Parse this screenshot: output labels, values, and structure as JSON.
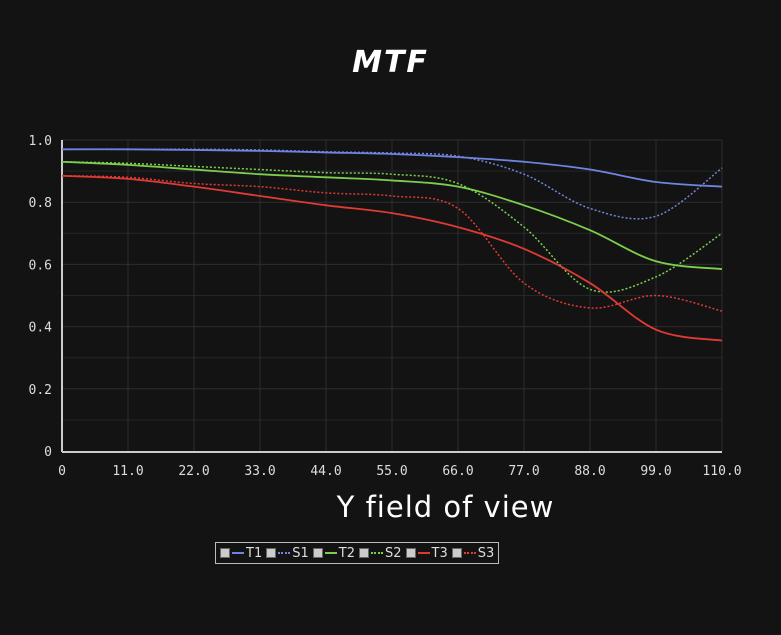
{
  "chart_data": {
    "type": "line",
    "title": "MTF",
    "xlabel": "Y field of view",
    "ylabel": "",
    "xlim": [
      0,
      110
    ],
    "ylim": [
      0,
      1.0
    ],
    "xticks": [
      "0",
      "11.0",
      "22.0",
      "33.0",
      "44.0",
      "55.0",
      "66.0",
      "77.0",
      "88.0",
      "99.0",
      "110.0"
    ],
    "yticks": [
      "0",
      "0.2",
      "0.4",
      "0.6",
      "0.8",
      "1.0"
    ],
    "grid": true,
    "legend": "bottom",
    "x": [
      0,
      11,
      22,
      33,
      44,
      55,
      66,
      77,
      88,
      99,
      110
    ],
    "series": [
      {
        "name": "T1",
        "color": "#6f84e0",
        "style": "solid",
        "values": [
          0.97,
          0.97,
          0.968,
          0.965,
          0.96,
          0.955,
          0.945,
          0.93,
          0.905,
          0.865,
          0.85
        ]
      },
      {
        "name": "S1",
        "color": "#6f84e0",
        "style": "dotted",
        "values": [
          0.97,
          0.97,
          0.97,
          0.968,
          0.962,
          0.958,
          0.948,
          0.89,
          0.78,
          0.755,
          0.91
        ]
      },
      {
        "name": "T2",
        "color": "#7ccf4e",
        "style": "solid",
        "values": [
          0.93,
          0.92,
          0.905,
          0.89,
          0.88,
          0.87,
          0.85,
          0.79,
          0.71,
          0.61,
          0.585
        ]
      },
      {
        "name": "S2",
        "color": "#7ccf4e",
        "style": "dotted",
        "values": [
          0.93,
          0.925,
          0.915,
          0.905,
          0.895,
          0.89,
          0.86,
          0.72,
          0.52,
          0.56,
          0.7
        ]
      },
      {
        "name": "T3",
        "color": "#e03a35",
        "style": "solid",
        "values": [
          0.885,
          0.875,
          0.85,
          0.82,
          0.79,
          0.765,
          0.72,
          0.65,
          0.54,
          0.39,
          0.355
        ]
      },
      {
        "name": "S3",
        "color": "#e03a35",
        "style": "dotted",
        "values": [
          0.885,
          0.88,
          0.86,
          0.85,
          0.83,
          0.82,
          0.78,
          0.54,
          0.46,
          0.5,
          0.45
        ]
      }
    ]
  }
}
